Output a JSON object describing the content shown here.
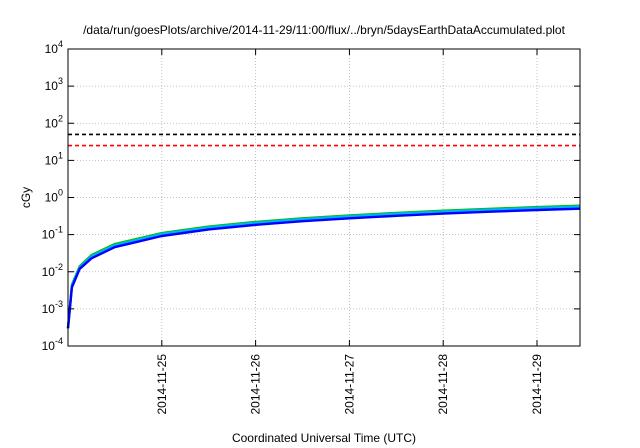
{
  "chart_data": {
    "type": "line",
    "title": "/data/run/goesPlots/archive/2014-11-29/11:00/flux/../bryn/5daysEarthDataAccumulated.plot",
    "xlabel": "Coordinated Universal Time (UTC)",
    "ylabel": "cGy",
    "xscale": "time",
    "yscale": "log",
    "xlim": [
      "2014-11-24T00:00",
      "2014-11-29T11:00"
    ],
    "ylim": [
      0.0001,
      10000
    ],
    "grid": true,
    "x_ticks": [
      "2014-11-25",
      "2014-11-26",
      "2014-11-27",
      "2014-11-28",
      "2014-11-29"
    ],
    "y_ticks": [
      {
        "value": 0.0001,
        "base": "10",
        "exp": "-4"
      },
      {
        "value": 0.001,
        "base": "10",
        "exp": "-3"
      },
      {
        "value": 0.01,
        "base": "10",
        "exp": "-2"
      },
      {
        "value": 0.1,
        "base": "10",
        "exp": "-1"
      },
      {
        "value": 1,
        "base": "10",
        "exp": "0"
      },
      {
        "value": 10,
        "base": "10",
        "exp": "1"
      },
      {
        "value": 100,
        "base": "10",
        "exp": "2"
      },
      {
        "value": 1000,
        "base": "10",
        "exp": "3"
      },
      {
        "value": 10000,
        "base": "10",
        "exp": "4"
      }
    ],
    "reference_lines": [
      {
        "y": 50,
        "color": "#000000",
        "style": "dashed"
      },
      {
        "y": 25,
        "color": "#ff0000",
        "style": "dashed"
      }
    ],
    "series": [
      {
        "color": "#00c000",
        "x": [
          "2014-11-24T00:00",
          "2014-11-24T01:00",
          "2014-11-24T03:00",
          "2014-11-24T06:00",
          "2014-11-24T12:00",
          "2014-11-25T00:00",
          "2014-11-25T12:00",
          "2014-11-26T00:00",
          "2014-11-26T12:00",
          "2014-11-27T00:00",
          "2014-11-27T12:00",
          "2014-11-28T00:00",
          "2014-11-28T12:00",
          "2014-11-29T00:00",
          "2014-11-29T11:00"
        ],
        "y": [
          0.0003,
          0.0045,
          0.014,
          0.028,
          0.056,
          0.11,
          0.165,
          0.22,
          0.275,
          0.33,
          0.385,
          0.44,
          0.495,
          0.55,
          0.6
        ]
      },
      {
        "color": "#00b0ff",
        "x": [
          "2014-11-24T00:00",
          "2014-11-24T01:00",
          "2014-11-24T03:00",
          "2014-11-24T06:00",
          "2014-11-24T12:00",
          "2014-11-25T00:00",
          "2014-11-25T12:00",
          "2014-11-26T00:00",
          "2014-11-26T12:00",
          "2014-11-27T00:00",
          "2014-11-27T12:00",
          "2014-11-28T00:00",
          "2014-11-28T12:00",
          "2014-11-29T00:00",
          "2014-11-29T11:00"
        ],
        "y": [
          0.0003,
          0.0042,
          0.013,
          0.026,
          0.052,
          0.104,
          0.156,
          0.208,
          0.26,
          0.312,
          0.364,
          0.416,
          0.468,
          0.52,
          0.565
        ]
      },
      {
        "color": "#0000ff",
        "x": [
          "2014-11-24T00:00",
          "2014-11-24T01:00",
          "2014-11-24T03:00",
          "2014-11-24T06:00",
          "2014-11-24T12:00",
          "2014-11-25T00:00",
          "2014-11-25T12:00",
          "2014-11-26T00:00",
          "2014-11-26T12:00",
          "2014-11-27T00:00",
          "2014-11-27T12:00",
          "2014-11-28T00:00",
          "2014-11-28T12:00",
          "2014-11-29T00:00",
          "2014-11-29T11:00"
        ],
        "y": [
          0.0003,
          0.0038,
          0.012,
          0.023,
          0.046,
          0.092,
          0.138,
          0.184,
          0.23,
          0.276,
          0.322,
          0.368,
          0.414,
          0.46,
          0.5
        ]
      }
    ]
  }
}
